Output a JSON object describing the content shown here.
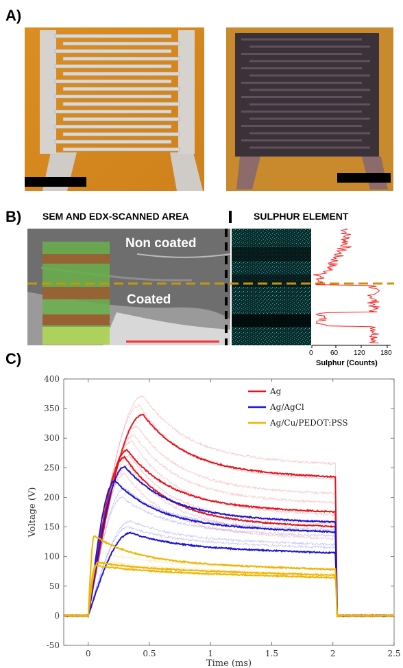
{
  "panel_a": {
    "label": "A)"
  },
  "panel_b": {
    "label": "B)",
    "title_left": "SEM AND EDX-SCANNED AREA",
    "title_right": "SULPHUR ELEMENT",
    "region_top": "Non coated",
    "region_bottom": "Coated",
    "profile_axis_label": "Sulphur (Counts)",
    "profile_ticks": [
      "0",
      "60",
      "120",
      "180"
    ],
    "colors": {
      "profile": "#ff2020",
      "divider": "#c8960a",
      "scalebar": "#ff3030"
    }
  },
  "panel_c": {
    "label": "C)"
  },
  "chart_data": {
    "type": "line",
    "title": "",
    "xlabel": "Time (ms)",
    "ylabel": "Voltage (V)",
    "xlim": [
      -0.2,
      2.5
    ],
    "ylim": [
      -50,
      400
    ],
    "xticks": [
      0,
      0.5,
      1,
      1.5,
      2,
      2.5
    ],
    "xtick_labels": [
      "0",
      "0.5",
      "1",
      "1.5",
      "2",
      "2.5"
    ],
    "yticks": [
      -50,
      0,
      50,
      100,
      150,
      200,
      250,
      300,
      350,
      400
    ],
    "ytick_labels": [
      "-50",
      "0",
      "50",
      "100",
      "150",
      "200",
      "250",
      "300",
      "350",
      "400"
    ],
    "grid": false,
    "legend_position": "top-right",
    "series": [
      {
        "name": "Ag",
        "color": "#e8141c",
        "peaks": [
          {
            "t": 0.45,
            "v": 340,
            "end": 243
          },
          {
            "t": 0.32,
            "v": 280,
            "end": 185
          },
          {
            "t": 0.3,
            "v": 268,
            "end": 160
          }
        ]
      },
      {
        "name": "Ag/AgCl",
        "color": "#1c14d2",
        "peaks": [
          {
            "t": 0.3,
            "v": 252,
            "end": 168
          },
          {
            "t": 0.22,
            "v": 228,
            "end": 152
          },
          {
            "t": 0.35,
            "v": 140,
            "end": 116
          }
        ]
      },
      {
        "name": "Ag/Cu/PEDOT:PSS",
        "color": "#f0b400",
        "peaks": [
          {
            "t": 0.05,
            "v": 135,
            "end": 90
          },
          {
            "t": 0.08,
            "v": 90,
            "end": 80
          },
          {
            "t": 0.06,
            "v": 85,
            "end": 76
          }
        ]
      }
    ]
  }
}
